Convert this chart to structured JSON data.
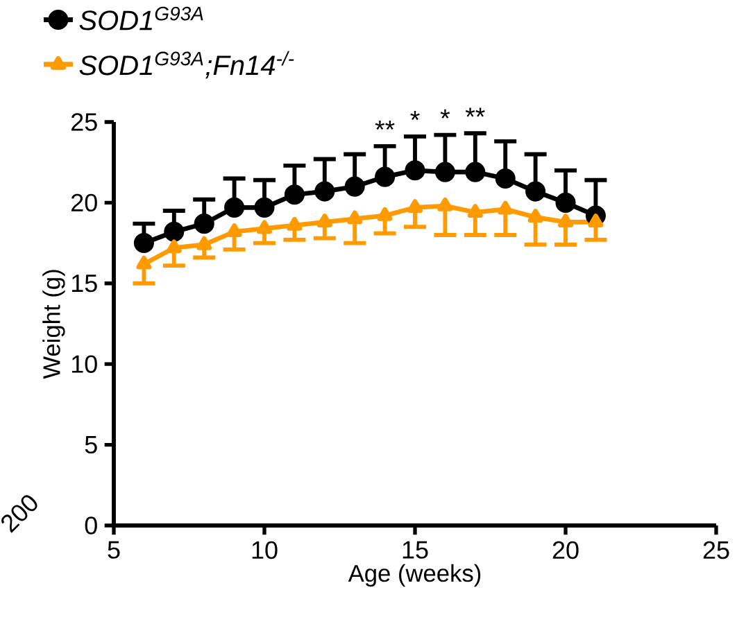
{
  "chart_data": {
    "type": "line",
    "xlabel": "Age (weeks)",
    "ylabel": "Weight (g)",
    "x": [
      6,
      7,
      8,
      9,
      10,
      11,
      12,
      13,
      14,
      15,
      16,
      17,
      18,
      19,
      20,
      21
    ],
    "xlim": [
      5,
      25
    ],
    "xticks": [
      5,
      10,
      15,
      20,
      25
    ],
    "ylim": [
      0,
      25
    ],
    "yticks": [
      0,
      5,
      10,
      15,
      20,
      25
    ],
    "legend": "top left",
    "series": [
      {
        "name": "SOD1$^{G93A}$",
        "color": "#000000",
        "marker": "circle",
        "values": [
          17.5,
          18.2,
          18.7,
          19.7,
          19.7,
          20.5,
          20.7,
          21.0,
          21.6,
          22.0,
          21.9,
          21.9,
          21.5,
          20.7,
          20.0,
          19.2
        ],
        "errors": [
          [
            17.5,
            18.7
          ],
          [
            18.2,
            19.5
          ],
          [
            18.7,
            20.2
          ],
          [
            19.7,
            21.5
          ],
          [
            19.7,
            21.4
          ],
          [
            20.5,
            22.3
          ],
          [
            20.7,
            22.7
          ],
          [
            21.0,
            23.0
          ],
          [
            21.6,
            23.5
          ],
          [
            22.0,
            24.1
          ],
          [
            21.9,
            24.2
          ],
          [
            21.9,
            24.3
          ],
          [
            21.5,
            23.8
          ],
          [
            20.7,
            23.0
          ],
          [
            20.0,
            22.0
          ],
          [
            19.2,
            21.4
          ]
        ]
      },
      {
        "name": "SOD1$^{G93A}$;Fn14$^{-/-}$",
        "color": "#ff9a00",
        "marker": "triangle",
        "values": [
          16.2,
          17.2,
          17.4,
          18.2,
          18.4,
          18.6,
          18.8,
          19.0,
          19.2,
          19.7,
          19.8,
          19.4,
          19.6,
          19.1,
          18.8,
          18.8
        ],
        "errors": [
          [
            15.0,
            16.2
          ],
          [
            16.1,
            17.2
          ],
          [
            16.6,
            17.4
          ],
          [
            17.1,
            18.2
          ],
          [
            17.5,
            18.4
          ],
          [
            17.7,
            18.6
          ],
          [
            17.8,
            18.8
          ],
          [
            17.5,
            19.0
          ],
          [
            18.1,
            19.2
          ],
          [
            18.5,
            19.7
          ],
          [
            18.0,
            19.8
          ],
          [
            18.0,
            19.4
          ],
          [
            18.0,
            19.6
          ],
          [
            17.4,
            19.1
          ],
          [
            17.4,
            18.8
          ],
          [
            17.7,
            18.8
          ]
        ]
      }
    ],
    "annotations": [
      {
        "text": "**",
        "x": 14,
        "y": 23.5
      },
      {
        "text": "*",
        "x": 15,
        "y": 24.1
      },
      {
        "text": "*",
        "x": 16,
        "y": 24.2
      },
      {
        "text": "**",
        "x": 17,
        "y": 24.3
      },
      "200"
    ]
  }
}
